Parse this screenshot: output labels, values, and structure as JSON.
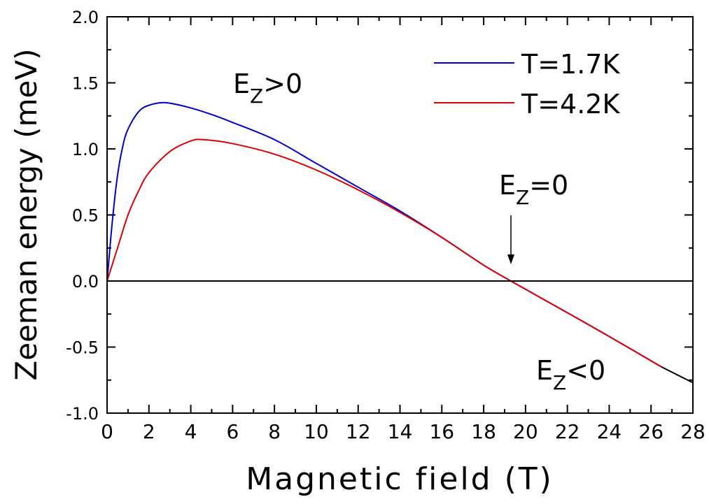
{
  "chart_data": {
    "type": "line",
    "xlabel": "Magnetic field (T)",
    "ylabel": "Zeeman energy (meV)",
    "xlim": [
      0,
      28
    ],
    "ylim": [
      -1.0,
      2.0
    ],
    "xticks": [
      "0",
      "2",
      "4",
      "6",
      "8",
      "10",
      "12",
      "14",
      "16",
      "18",
      "20",
      "22",
      "24",
      "26",
      "28"
    ],
    "yticks": [
      "-1.0",
      "-0.5",
      "0.0",
      "0.5",
      "1.0",
      "1.5",
      "2.0"
    ],
    "grid": false,
    "legend_position": "top-right",
    "series": [
      {
        "name": "T=1.7K",
        "color": "#0000cc",
        "x": [
          0,
          0.25,
          0.5,
          0.75,
          1,
          1.5,
          2,
          2.8,
          4,
          5,
          6,
          8,
          10,
          12,
          14,
          16,
          18,
          19.3,
          22,
          24,
          26.5
        ],
        "y": [
          0,
          0.45,
          0.8,
          1.02,
          1.15,
          1.28,
          1.33,
          1.35,
          1.31,
          1.26,
          1.2,
          1.07,
          0.89,
          0.71,
          0.53,
          0.33,
          0.12,
          0,
          -0.24,
          -0.42,
          -0.65
        ]
      },
      {
        "name": "T=4.2K",
        "color": "#dd0000",
        "x": [
          0,
          0.5,
          1,
          1.5,
          2,
          3,
          4,
          4.6,
          6,
          8,
          10,
          12,
          14,
          16,
          18,
          19.3,
          22,
          24,
          26.5
        ],
        "y": [
          0,
          0.25,
          0.5,
          0.68,
          0.82,
          0.98,
          1.06,
          1.07,
          1.04,
          0.96,
          0.84,
          0.69,
          0.52,
          0.33,
          0.12,
          0,
          -0.24,
          -0.42,
          -0.65
        ]
      },
      {
        "name": "extrapolation",
        "color": "#000000",
        "x": [
          26.5,
          28
        ],
        "y": [
          -0.65,
          -0.77
        ]
      },
      {
        "name": "zero line",
        "color": "#000000",
        "x": [
          0,
          28
        ],
        "y": [
          0,
          0
        ]
      }
    ],
    "annotations": [
      {
        "text_main": "E",
        "text_sub": "Z",
        "text_rest": ">0"
      },
      {
        "text_main": "E",
        "text_sub": "Z",
        "text_rest": "=0",
        "arrow_to_x": 19.3
      },
      {
        "text_main": "E",
        "text_sub": "Z",
        "text_rest": "<0"
      }
    ]
  }
}
